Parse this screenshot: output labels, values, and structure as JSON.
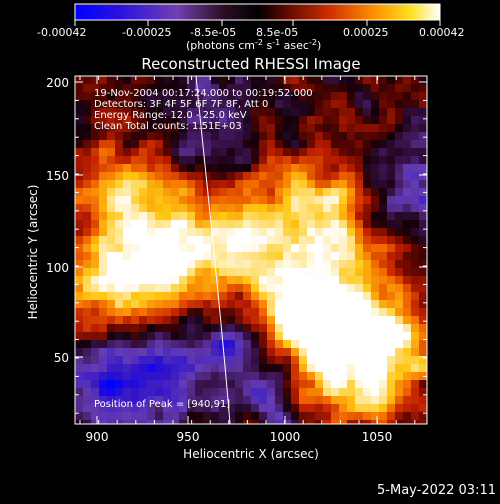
{
  "colorbar": {
    "ticks": [
      "-0.00042",
      "-0.00025",
      "-8.5e-05",
      "8.5e-05",
      "0.00025",
      "0.00042"
    ],
    "units_main": "(photons cm",
    "units_exp1": "-2",
    "units_mid": " s",
    "units_exp2": "-1",
    "units_mid2": " asec",
    "units_exp3": "-2",
    "units_end": ")",
    "colors": [
      "#0000ff",
      "#3a00c8",
      "#6e30b4",
      "#1a0a14",
      "#5a0a00",
      "#c82800",
      "#ff7a00",
      "#ffe000",
      "#ffffff"
    ]
  },
  "plot": {
    "title": "Reconstructed RHESSI Image",
    "xlabel": "Heliocentric X (arcsec)",
    "ylabel": "Heliocentric Y (arcsec)",
    "x_ticks": [
      "900",
      "950",
      "1000",
      "1050"
    ],
    "y_ticks": [
      "200",
      "150",
      "100",
      "50"
    ],
    "xlim": [
      888,
      1078
    ],
    "ylim": [
      13,
      206
    ],
    "info_lines": [
      "19-Nov-2004 00:17:24.000 to 00:19:52.000",
      "Detectors: 3F 4F 5F 6F 7F 8F, Att 0",
      "Energy Range: 12.0 - 25.0 keV",
      "Clean     Total counts: 1.51E+03"
    ],
    "peak_label": "Position of Peak = [940,91]",
    "peak_position": [
      940,
      91
    ],
    "limb_color": "#ffffff"
  },
  "timestamp": "5-May-2022 03:11"
}
